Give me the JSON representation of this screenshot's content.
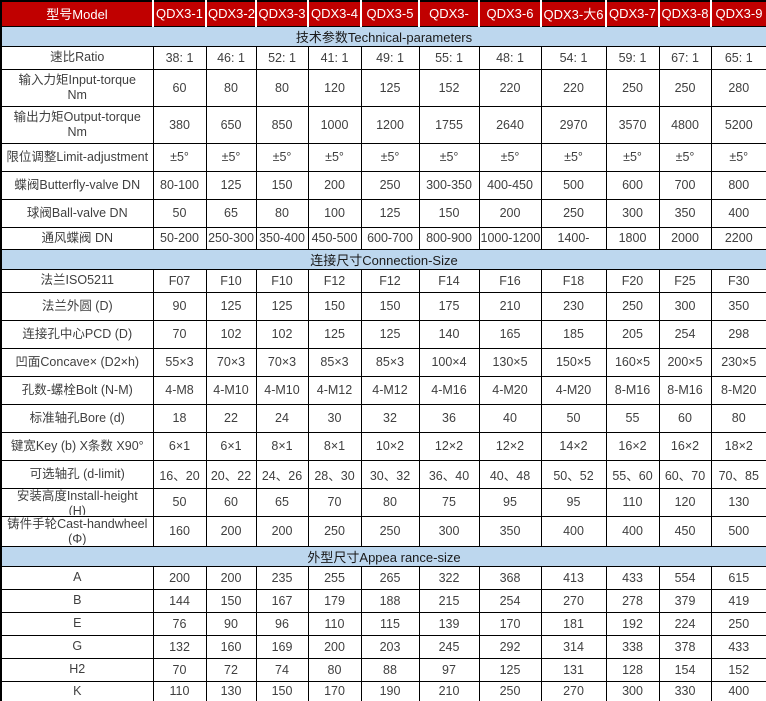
{
  "colors": {
    "header_bg": "#c00000",
    "header_text": "#ffffff",
    "header_divider": "#ffffff",
    "section_bg": "#bdd7ee",
    "grid": "#000000",
    "text": "#3f3f3f"
  },
  "table": {
    "header": [
      "型号Model",
      "QDX3-1",
      "QDX3-2",
      "QDX3-3",
      "QDX3-4",
      "QDX3-5",
      "QDX3-",
      "QDX3-6",
      "QDX3-大6",
      "QDX3-7",
      "QDX3-8",
      "QDX3-9"
    ],
    "sections": [
      {
        "title": "技术参数Technical-parameters",
        "rows": [
          {
            "label": "速比Ratio",
            "values": [
              "38: 1",
              "46: 1",
              "52: 1",
              "41: 1",
              "49: 1",
              "55: 1",
              "48: 1",
              "54: 1",
              "59: 1",
              "67: 1",
              "65: 1"
            ]
          },
          {
            "label": "输入力矩Input-torque\nNm",
            "values": [
              "60",
              "80",
              "80",
              "120",
              "125",
              "152",
              "220",
              "220",
              "250",
              "250",
              "280"
            ]
          },
          {
            "label": "输出力矩Output-torque\nNm",
            "values": [
              "380",
              "650",
              "850",
              "1000",
              "1200",
              "1755",
              "2640",
              "2970",
              "3570",
              "4800",
              "5200"
            ]
          },
          {
            "label": "限位调整Limit-adjustment",
            "values": [
              "±5°",
              "±5°",
              "±5°",
              "±5°",
              "±5°",
              "±5°",
              "±5°",
              "±5°",
              "±5°",
              "±5°",
              "±5°"
            ]
          },
          {
            "label": "蝶阀Butterfly-valve DN",
            "values": [
              "80-100",
              "125",
              "150",
              "200",
              "250",
              "300-350",
              "400-450",
              "500",
              "600",
              "700",
              "800"
            ]
          },
          {
            "label": "球阀Ball-valve DN",
            "values": [
              "50",
              "65",
              "80",
              "100",
              "125",
              "150",
              "200",
              "250",
              "300",
              "350",
              "400"
            ]
          },
          {
            "label": "通风蝶阀 DN",
            "values": [
              "50-200",
              "250-300",
              "350-400",
              "450-500",
              "600-700",
              "800-900",
              "1000-1200",
              "1400-",
              "1800",
              "2000",
              "2200"
            ]
          }
        ]
      },
      {
        "title": "连接尺寸Connection-Size",
        "rows": [
          {
            "label": "法兰ISO5211",
            "values": [
              "F07",
              "F10",
              "F10",
              "F12",
              "F12",
              "F14",
              "F16",
              "F18",
              "F20",
              "F25",
              "F30"
            ]
          },
          {
            "label": "法兰外圆 (D)",
            "values": [
              "90",
              "125",
              "125",
              "150",
              "150",
              "175",
              "210",
              "230",
              "250",
              "300",
              "350"
            ]
          },
          {
            "label": "连接孔中心PCD (D)",
            "values": [
              "70",
              "102",
              "102",
              "125",
              "125",
              "140",
              "165",
              "185",
              "205",
              "254",
              "298"
            ]
          },
          {
            "label": "凹面Concave× (D2×h)",
            "values": [
              "55×3",
              "70×3",
              "70×3",
              "85×3",
              "85×3",
              "100×4",
              "130×5",
              "150×5",
              "160×5",
              "200×5",
              "230×5"
            ]
          },
          {
            "label": "孔数-螺栓Bolt (N-M)",
            "values": [
              "4-M8",
              "4-M10",
              "4-M10",
              "4-M12",
              "4-M12",
              "4-M16",
              "4-M20",
              "4-M20",
              "8-M16",
              "8-M16",
              "8-M20"
            ]
          },
          {
            "label": "标准轴孔Bore (d)",
            "values": [
              "18",
              "22",
              "24",
              "30",
              "32",
              "36",
              "40",
              "50",
              "55",
              "60",
              "80"
            ]
          },
          {
            "label": "键宽Key (b) X条数 X90°",
            "values": [
              "6×1",
              "6×1",
              "8×1",
              "8×1",
              "10×2",
              "12×2",
              "12×2",
              "14×2",
              "16×2",
              "16×2",
              "18×2"
            ]
          },
          {
            "label": "可选轴孔 (d-limit)",
            "values": [
              "16、20",
              "20、22",
              "24、26",
              "28、30",
              "30、32",
              "36、40",
              "40、48",
              "50、52",
              "55、60",
              "60、70",
              "70、85"
            ]
          },
          {
            "label": "安装高度Install-height\n(H)",
            "values": [
              "50",
              "60",
              "65",
              "70",
              "80",
              "75",
              "95",
              "95",
              "110",
              "120",
              "130"
            ]
          },
          {
            "label": "铸件手轮Cast-handwheel\n(Φ)",
            "values": [
              "160",
              "200",
              "200",
              "250",
              "250",
              "300",
              "350",
              "400",
              "400",
              "450",
              "500"
            ]
          }
        ]
      },
      {
        "title": "外型尺寸Appea rance-size",
        "rows": [
          {
            "label": "A",
            "values": [
              "200",
              "200",
              "235",
              "255",
              "265",
              "322",
              "368",
              "413",
              "433",
              "554",
              "615"
            ]
          },
          {
            "label": "B",
            "values": [
              "144",
              "150",
              "167",
              "179",
              "188",
              "215",
              "254",
              "270",
              "278",
              "379",
              "419"
            ]
          },
          {
            "label": "E",
            "values": [
              "76",
              "90",
              "96",
              "110",
              "115",
              "139",
              "170",
              "181",
              "192",
              "224",
              "250"
            ]
          },
          {
            "label": "G",
            "values": [
              "132",
              "160",
              "169",
              "200",
              "203",
              "245",
              "292",
              "314",
              "338",
              "378",
              "433"
            ]
          },
          {
            "label": "H2",
            "values": [
              "70",
              "72",
              "74",
              "80",
              "88",
              "97",
              "125",
              "131",
              "128",
              "154",
              "152"
            ]
          },
          {
            "label": "K",
            "values": [
              "110",
              "130",
              "150",
              "170",
              "190",
              "210",
              "250",
              "270",
              "300",
              "330",
              "400"
            ]
          }
        ]
      }
    ]
  }
}
